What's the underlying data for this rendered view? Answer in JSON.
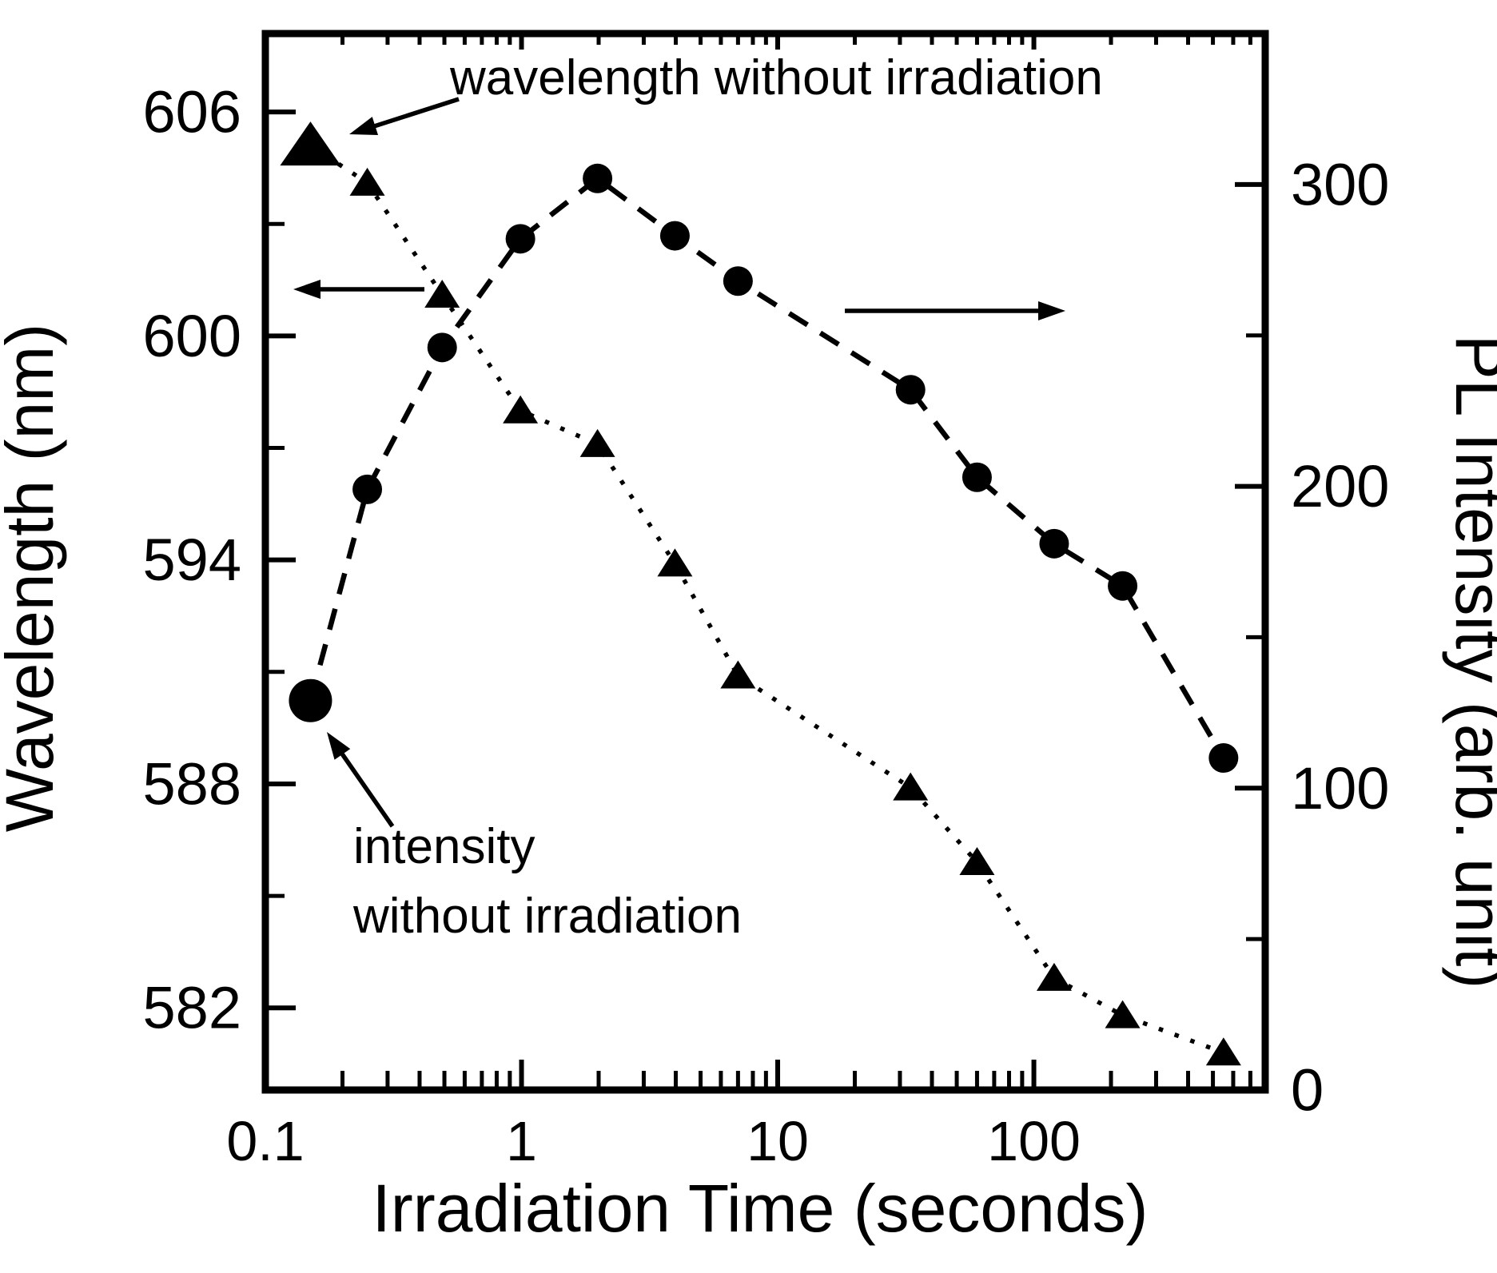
{
  "chart_data": {
    "type": "line",
    "title": "",
    "xlabel": "Irradiation Time (seconds)",
    "x_scale": "log",
    "x_range": [
      0.1,
      800
    ],
    "x_major_ticks": [
      0.1,
      1,
      10,
      100
    ],
    "x_tick_labels": [
      "0.1",
      "1",
      "10",
      "100"
    ],
    "grid": false,
    "legend": "none (annotated arrows instead)",
    "y_left": {
      "label": "Wavelength (nm)",
      "range": [
        579.8,
        608.1
      ],
      "major_ticks": [
        582,
        588,
        594,
        600,
        606
      ],
      "minor_ticks": [
        585,
        591,
        597,
        603
      ]
    },
    "y_right": {
      "label": "PL Intensity (arb. unit)",
      "range": [
        0,
        350
      ],
      "major_ticks": [
        0,
        100,
        200,
        300
      ],
      "minor_ticks": [
        50,
        150,
        250
      ]
    },
    "x_values": [
      0.15,
      0.25,
      0.49,
      0.99,
      1.98,
      3.97,
      7.0,
      33,
      60,
      120,
      222,
      550
    ],
    "series": [
      {
        "name": "wavelength",
        "axis": "left",
        "marker": "triangle",
        "line_style": "dotted",
        "first_point_is_reference": true,
        "values": [
          605.1,
          604.1,
          601.1,
          598.0,
          597.1,
          593.9,
          590.9,
          587.9,
          585.9,
          582.8,
          581.8,
          580.8
        ]
      },
      {
        "name": "pl_intensity",
        "axis": "right",
        "marker": "circle",
        "line_style": "dashed",
        "first_point_is_reference": true,
        "values": [
          129,
          199,
          246,
          282,
          302,
          283,
          268,
          232,
          203,
          181,
          167,
          110
        ]
      }
    ],
    "annotations": {
      "wavelength_ref": "wavelength without irradiation",
      "intensity_ref_line1": "intensity",
      "intensity_ref_line2": "without irradiation"
    },
    "colors": {
      "ink": "#000000",
      "background": "#ffffff"
    }
  }
}
